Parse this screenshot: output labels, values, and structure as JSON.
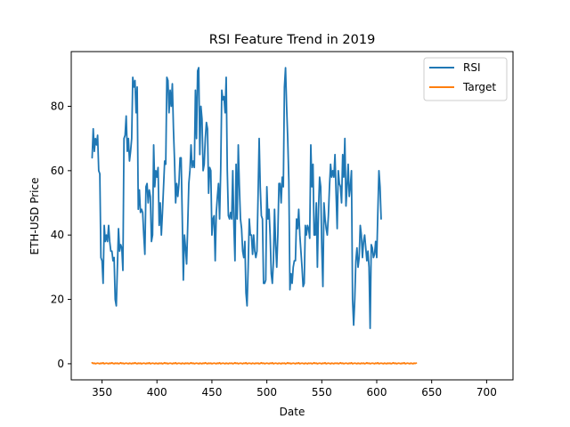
{
  "chart_data": {
    "type": "line",
    "title": "RSI Feature Trend in 2019",
    "xlabel": "Date",
    "ylabel": "ETH-USD Price",
    "xlim": [
      322,
      724
    ],
    "ylim": [
      -5,
      97
    ],
    "x_ticks": [
      350,
      400,
      450,
      500,
      550,
      600,
      650,
      700
    ],
    "y_ticks": [
      0,
      20,
      40,
      60,
      80
    ],
    "grid": false,
    "legend": {
      "position": "top-right",
      "entries": [
        "RSI",
        "Target"
      ]
    },
    "x_start": 341,
    "series": [
      {
        "name": "RSI",
        "color": "#1f77b4",
        "values": [
          64,
          73,
          66,
          70,
          68,
          71,
          60,
          59,
          33,
          32,
          25,
          43,
          38,
          40,
          38,
          43,
          38,
          35,
          35,
          32,
          33,
          20,
          18,
          30,
          42,
          35,
          37,
          36,
          29,
          70,
          71,
          77,
          66,
          70,
          63,
          66,
          70,
          89,
          86,
          88,
          78,
          86,
          48,
          54,
          47,
          48,
          47,
          40,
          34,
          55,
          56,
          50,
          54,
          52,
          38,
          40,
          68,
          55,
          60,
          58,
          61,
          43,
          50,
          40,
          47,
          55,
          63,
          62,
          89,
          88,
          78,
          85,
          80,
          87,
          73,
          63,
          50,
          56,
          52,
          56,
          64,
          64,
          46,
          26,
          40,
          36,
          31,
          43,
          56,
          60,
          68,
          61,
          63,
          61,
          85,
          70,
          91,
          92,
          65,
          80,
          76,
          60,
          62,
          70,
          75,
          73,
          53,
          61,
          60,
          40,
          45,
          46,
          32,
          47,
          52,
          56,
          45,
          60,
          85,
          82,
          83,
          78,
          89,
          60,
          46,
          45,
          47,
          45,
          60,
          43,
          32,
          62,
          45,
          68,
          55,
          45,
          42,
          35,
          33,
          38,
          22,
          18,
          30,
          45,
          40,
          40,
          34,
          40,
          35,
          33,
          35,
          52,
          70,
          55,
          46,
          45,
          25,
          25,
          26,
          55,
          45,
          48,
          40,
          28,
          25,
          32,
          48,
          37,
          30,
          40,
          56,
          56,
          50,
          58,
          55,
          86,
          92,
          80,
          70,
          57,
          23,
          28,
          25,
          30,
          32,
          32,
          45,
          42,
          48,
          40,
          35,
          30,
          24,
          25,
          43,
          40,
          43,
          42,
          39,
          68,
          55,
          62,
          40,
          40,
          50,
          30,
          48,
          58,
          55,
          36,
          24,
          50,
          45,
          42,
          40,
          46,
          55,
          62,
          58,
          60,
          58,
          65,
          53,
          42,
          60,
          56,
          55,
          50,
          65,
          58,
          70,
          49,
          55,
          62,
          52,
          55,
          60,
          20,
          12,
          20,
          32,
          36,
          30,
          33,
          43,
          40,
          33,
          38,
          40,
          36,
          32,
          35,
          30,
          11,
          37,
          36,
          33,
          34,
          38,
          33,
          47,
          60,
          55,
          45
        ],
        "values_note_removed": true
      },
      {
        "name": "Target",
        "color": "#ff7f0e",
        "values": [
          0.3,
          0.1,
          0.2,
          0.0,
          0.1,
          0.2,
          0.1,
          0.0,
          0.2,
          0.1,
          0.3,
          0.0,
          0.1,
          0.2,
          0.1,
          0.0,
          0.2,
          0.1,
          0.3,
          0.1,
          0.0,
          0.2,
          0.1,
          0.2,
          0.0,
          0.1,
          0.3,
          0.1,
          0.2,
          0.0,
          0.1,
          0.2,
          0.1,
          0.0,
          0.2,
          0.1,
          0.0,
          0.2,
          0.1,
          0.3,
          0.1,
          0.0,
          0.2,
          0.1,
          0.2,
          0.0,
          0.1,
          0.2,
          0.1,
          0.0,
          0.2,
          0.1,
          0.3,
          0.0,
          0.1,
          0.2,
          0.1,
          0.0,
          0.2,
          0.1,
          0.0,
          0.2,
          0.1,
          0.2,
          0.0,
          0.1,
          0.3,
          0.1,
          0.2,
          0.0,
          0.1,
          0.2,
          0.1,
          0.0,
          0.2,
          0.1,
          0.3,
          0.0,
          0.1,
          0.2,
          0.1,
          0.0,
          0.2,
          0.1,
          0.0,
          0.2,
          0.1,
          0.2,
          0.0,
          0.1,
          0.3,
          0.1,
          0.2,
          0.0,
          0.1,
          0.2,
          0.1,
          0.0,
          0.2,
          0.1,
          0.0,
          0.2,
          0.1,
          0.3,
          0.1,
          0.0,
          0.2,
          0.1,
          0.2,
          0.0,
          0.1,
          0.2,
          0.1,
          0.0,
          0.2,
          0.1,
          0.3,
          0.0,
          0.1,
          0.2,
          0.1,
          0.0,
          0.2,
          0.1,
          0.0,
          0.2,
          0.1,
          0.2,
          0.0,
          0.1,
          0.3,
          0.1,
          0.2,
          0.0,
          0.1,
          0.2,
          0.1,
          0.0,
          0.2,
          0.1,
          0.3,
          0.0,
          0.1,
          0.2,
          0.1,
          0.0,
          0.2,
          0.1,
          0.0,
          0.2,
          0.1,
          0.2,
          0.0,
          0.1,
          0.3,
          0.1,
          0.2,
          0.0,
          0.1,
          0.2,
          0.1,
          0.0,
          0.2,
          0.1,
          0.3,
          0.0,
          0.1,
          0.2,
          0.1,
          0.0,
          0.2,
          0.1,
          0.0,
          0.2,
          0.1,
          0.2,
          0.0,
          0.1,
          0.3,
          0.1,
          0.2,
          0.0,
          0.1,
          0.2,
          0.1,
          0.0,
          0.2,
          0.1,
          0.3,
          0.0,
          0.1,
          0.2,
          0.1,
          0.0,
          0.2,
          0.1,
          0.0,
          0.2,
          0.1,
          0.2,
          0.0,
          0.1,
          0.3,
          0.1,
          0.2,
          0.0,
          0.1,
          0.2,
          0.1,
          0.0,
          0.2,
          0.1,
          0.3,
          0.0,
          0.1,
          0.2,
          0.1,
          0.0,
          0.2,
          0.1,
          0.0,
          0.2,
          0.1,
          0.2,
          0.0,
          0.1,
          0.3,
          0.1,
          0.2,
          0.0,
          0.1,
          0.2,
          0.1,
          0.0,
          0.2,
          0.1,
          0.3,
          0.0,
          0.1,
          0.2,
          0.1,
          0.0,
          0.2,
          0.1,
          0.0,
          0.2,
          0.1,
          0.2,
          0.0,
          0.1,
          0.3,
          0.1,
          0.2,
          0.0,
          0.1,
          0.2,
          0.1,
          0.0,
          0.2,
          0.1,
          0.3,
          0.0,
          0.1,
          0.2,
          0.1,
          0.0,
          0.2,
          0.1,
          0.0,
          0.2,
          0.1,
          0.2,
          0.0,
          0.1,
          0.3,
          0.1,
          0.2,
          0.0,
          0.1,
          0.2,
          0.1,
          0.0,
          0.2,
          0.1,
          0.3,
          0.0,
          0.1,
          0.2,
          0.1,
          0.0,
          0.2,
          0.1,
          0.0,
          0.2,
          0.1,
          0.2
        ]
      }
    ]
  }
}
